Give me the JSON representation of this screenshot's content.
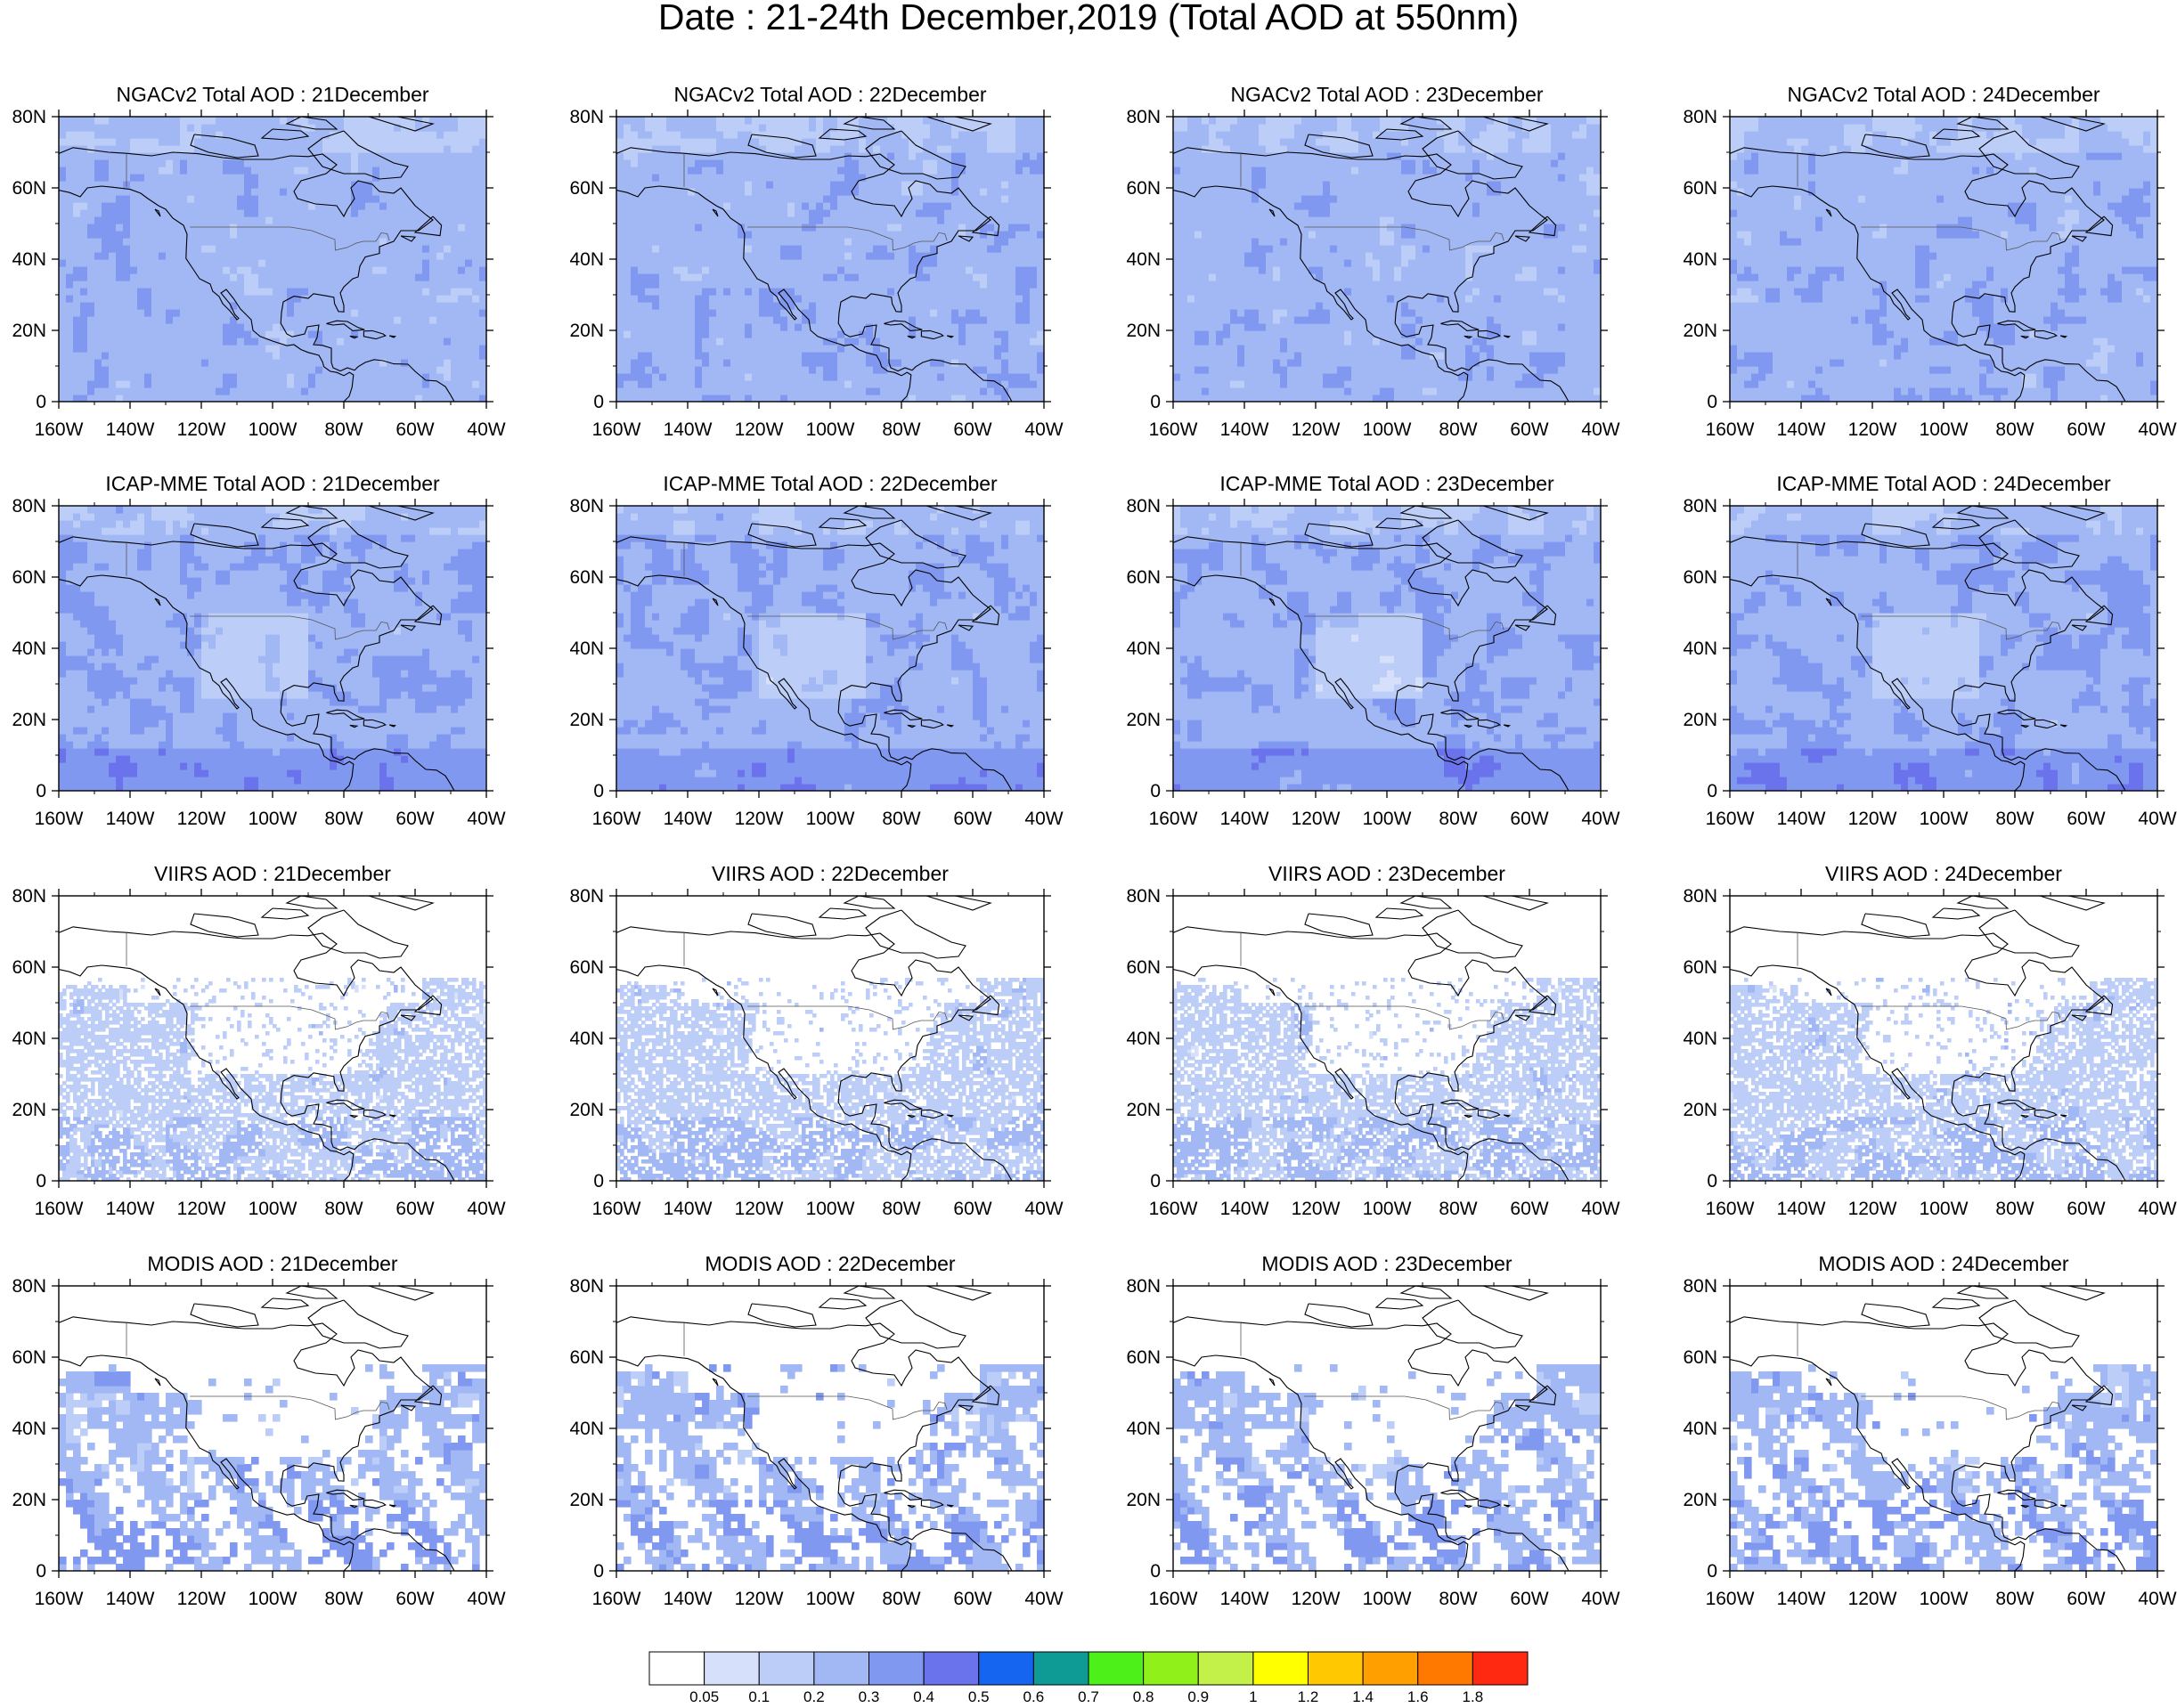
{
  "title": "Date : 21-24th December,2019 (Total AOD at 550nm)",
  "chart_data": {
    "type": "heatmap",
    "layout": "4x4 grid of maps",
    "panels": [
      {
        "title": "NGACv2 Total AOD : 21December",
        "source": "NGACv2",
        "day": 21
      },
      {
        "title": "NGACv2 Total AOD : 22December",
        "source": "NGACv2",
        "day": 22
      },
      {
        "title": "NGACv2 Total AOD : 23December",
        "source": "NGACv2",
        "day": 23
      },
      {
        "title": "NGACv2 Total AOD : 24December",
        "source": "NGACv2",
        "day": 24
      },
      {
        "title": "ICAP-MME Total AOD : 21December",
        "source": "ICAP-MME",
        "day": 21
      },
      {
        "title": "ICAP-MME Total AOD : 22December",
        "source": "ICAP-MME",
        "day": 22
      },
      {
        "title": "ICAP-MME Total AOD : 23December",
        "source": "ICAP-MME",
        "day": 23
      },
      {
        "title": "ICAP-MME Total AOD : 24December",
        "source": "ICAP-MME",
        "day": 24
      },
      {
        "title": "VIIRS AOD : 21December",
        "source": "VIIRS",
        "day": 21
      },
      {
        "title": "VIIRS AOD : 22December",
        "source": "VIIRS",
        "day": 22
      },
      {
        "title": "VIIRS AOD : 23December",
        "source": "VIIRS",
        "day": 23
      },
      {
        "title": "VIIRS AOD : 24December",
        "source": "VIIRS",
        "day": 24
      },
      {
        "title": "MODIS AOD : 21December",
        "source": "MODIS",
        "day": 21
      },
      {
        "title": "MODIS AOD : 22December",
        "source": "MODIS",
        "day": 22
      },
      {
        "title": "MODIS AOD : 23December",
        "source": "MODIS",
        "day": 23
      },
      {
        "title": "MODIS AOD : 24December",
        "source": "MODIS",
        "day": 24
      }
    ],
    "x_axis": {
      "ticks": [
        "160W",
        "140W",
        "120W",
        "100W",
        "80W",
        "60W",
        "40W"
      ],
      "range": [
        -160,
        -40
      ]
    },
    "y_axis": {
      "ticks": [
        "0",
        "20N",
        "40N",
        "60N",
        "80N"
      ],
      "range": [
        0,
        80
      ]
    },
    "colorbar": {
      "labels": [
        "0.05",
        "0.1",
        "0.2",
        "0.3",
        "0.4",
        "0.5",
        "0.6",
        "0.7",
        "0.8",
        "0.9",
        "1",
        "1.2",
        "1.4",
        "1.6",
        "1.8"
      ],
      "colors": [
        "#ffffff",
        "#d6e0fa",
        "#bccdf7",
        "#a2b8f4",
        "#8198f0",
        "#6a72ec",
        "#1565f0",
        "#0e9b95",
        "#4ef01a",
        "#8ff01a",
        "#c4f04a",
        "#ffff00",
        "#ffc800",
        "#ffa000",
        "#ff7800",
        "#ff2810"
      ]
    }
  }
}
